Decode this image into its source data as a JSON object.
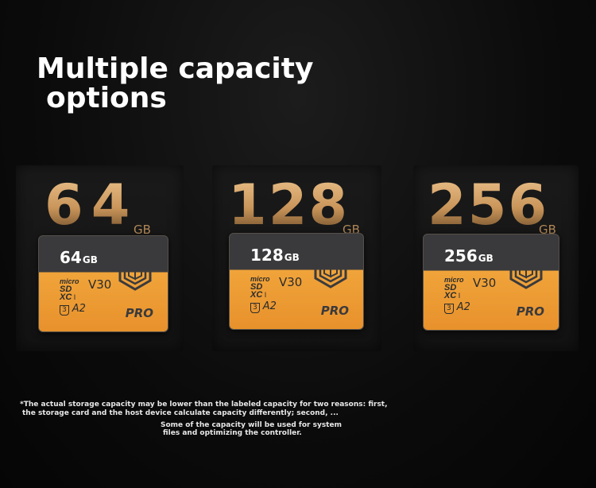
{
  "headline": {
    "line1": "Multiple capacity",
    "line2": "options"
  },
  "cards": [
    {
      "big_number": "64",
      "big_unit": "GB",
      "card_capacity": "64",
      "card_unit": "GB",
      "micro": "micro",
      "sd": "SD",
      "xc": "XC",
      "class": "I",
      "speed": "V30",
      "uhs": "3",
      "app_class": "A2",
      "badge": "PRO"
    },
    {
      "big_number": "128",
      "big_unit": "GB",
      "card_capacity": "128",
      "card_unit": "GB",
      "micro": "micro",
      "sd": "SD",
      "xc": "XC",
      "class": "I",
      "speed": "V30",
      "uhs": "3",
      "app_class": "A2",
      "badge": "PRO"
    },
    {
      "big_number": "256",
      "big_unit": "GB",
      "card_capacity": "256",
      "card_unit": "GB",
      "micro": "micro",
      "sd": "SD",
      "xc": "XC",
      "class": "I",
      "speed": "V30",
      "uhs": "3",
      "app_class": "A2",
      "badge": "PRO"
    }
  ],
  "footnote": {
    "line1": "*The actual storage capacity may be lower than the labeled capacity for two reasons: first,",
    "line2": "the storage card and the host device calculate capacity differently; second, ...",
    "line3": "Some of the capacity will be used for system",
    "line4": "files and optimizing the controller."
  },
  "colors": {
    "card_top": "#3a3a3c",
    "card_bottom": "#f0a43a",
    "gold": "#c9955a"
  },
  "icons": {
    "card_logo": "hexagon-box-icon"
  }
}
